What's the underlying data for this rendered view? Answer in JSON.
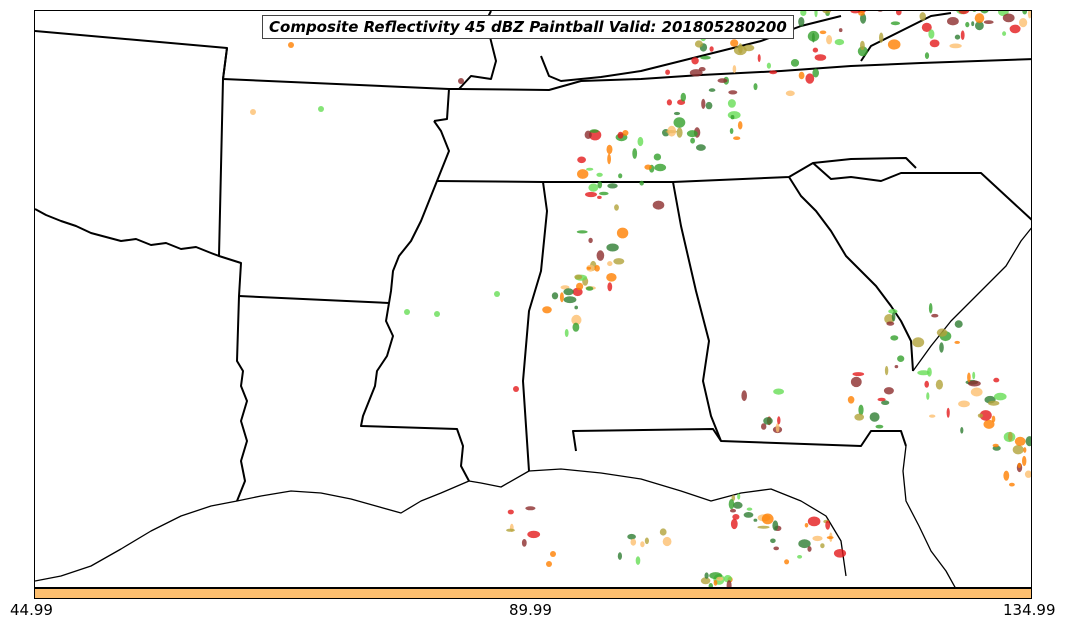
{
  "map": {
    "title": "Composite Reflectivity 45 dBZ Paintball Valid: 201805280200",
    "region": "Southeastern United States",
    "colors": {
      "palette": [
        "#e31a1c",
        "#ff7f00",
        "#fdbf6f",
        "#33a02c",
        "#b2a23a",
        "#8c2d2d",
        "#66dd55",
        "#2e7d32"
      ],
      "state_borders": "#000000",
      "background": "#ffffff"
    }
  },
  "colorbar": {
    "color": "#fdbf6f",
    "ticks": [
      "44.99",
      "89.99",
      "134.99"
    ]
  }
}
